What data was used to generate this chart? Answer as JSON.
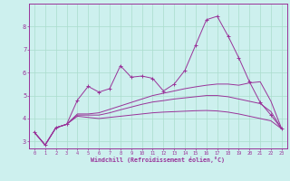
{
  "xlabel": "Windchill (Refroidissement éolien,°C)",
  "background_color": "#cdf0ee",
  "grid_color": "#aaddcc",
  "line_color": "#993399",
  "x": [
    0,
    1,
    2,
    3,
    4,
    5,
    6,
    7,
    8,
    9,
    10,
    11,
    12,
    13,
    14,
    15,
    16,
    17,
    18,
    19,
    20,
    21,
    22,
    23
  ],
  "y_main": [
    3.4,
    2.85,
    3.6,
    3.75,
    4.8,
    5.4,
    5.15,
    5.3,
    6.3,
    5.8,
    5.85,
    5.75,
    5.2,
    5.5,
    6.1,
    7.2,
    8.3,
    8.45,
    7.6,
    6.65,
    5.6,
    4.7,
    4.15,
    3.55
  ],
  "y_smooth1": [
    3.4,
    2.85,
    3.6,
    3.75,
    4.1,
    4.05,
    4.0,
    4.05,
    4.1,
    4.15,
    4.2,
    4.25,
    4.28,
    4.3,
    4.32,
    4.34,
    4.35,
    4.33,
    4.28,
    4.2,
    4.1,
    4.0,
    3.9,
    3.55
  ],
  "y_smooth2": [
    3.4,
    2.85,
    3.6,
    3.75,
    4.15,
    4.15,
    4.15,
    4.25,
    4.38,
    4.5,
    4.62,
    4.72,
    4.78,
    4.85,
    4.9,
    4.95,
    5.0,
    5.0,
    4.95,
    4.85,
    4.75,
    4.65,
    4.3,
    3.55
  ],
  "y_smooth3": [
    3.4,
    2.85,
    3.6,
    3.75,
    4.2,
    4.2,
    4.25,
    4.4,
    4.55,
    4.7,
    4.85,
    5.0,
    5.1,
    5.2,
    5.3,
    5.38,
    5.45,
    5.5,
    5.5,
    5.45,
    5.55,
    5.6,
    4.75,
    3.55
  ],
  "ylim": [
    2.7,
    9.0
  ],
  "xlim": [
    -0.5,
    23.5
  ],
  "yticks": [
    3,
    4,
    5,
    6,
    7,
    8
  ],
  "xticks": [
    0,
    1,
    2,
    3,
    4,
    5,
    6,
    7,
    8,
    9,
    10,
    11,
    12,
    13,
    14,
    15,
    16,
    17,
    18,
    19,
    20,
    21,
    22,
    23
  ]
}
